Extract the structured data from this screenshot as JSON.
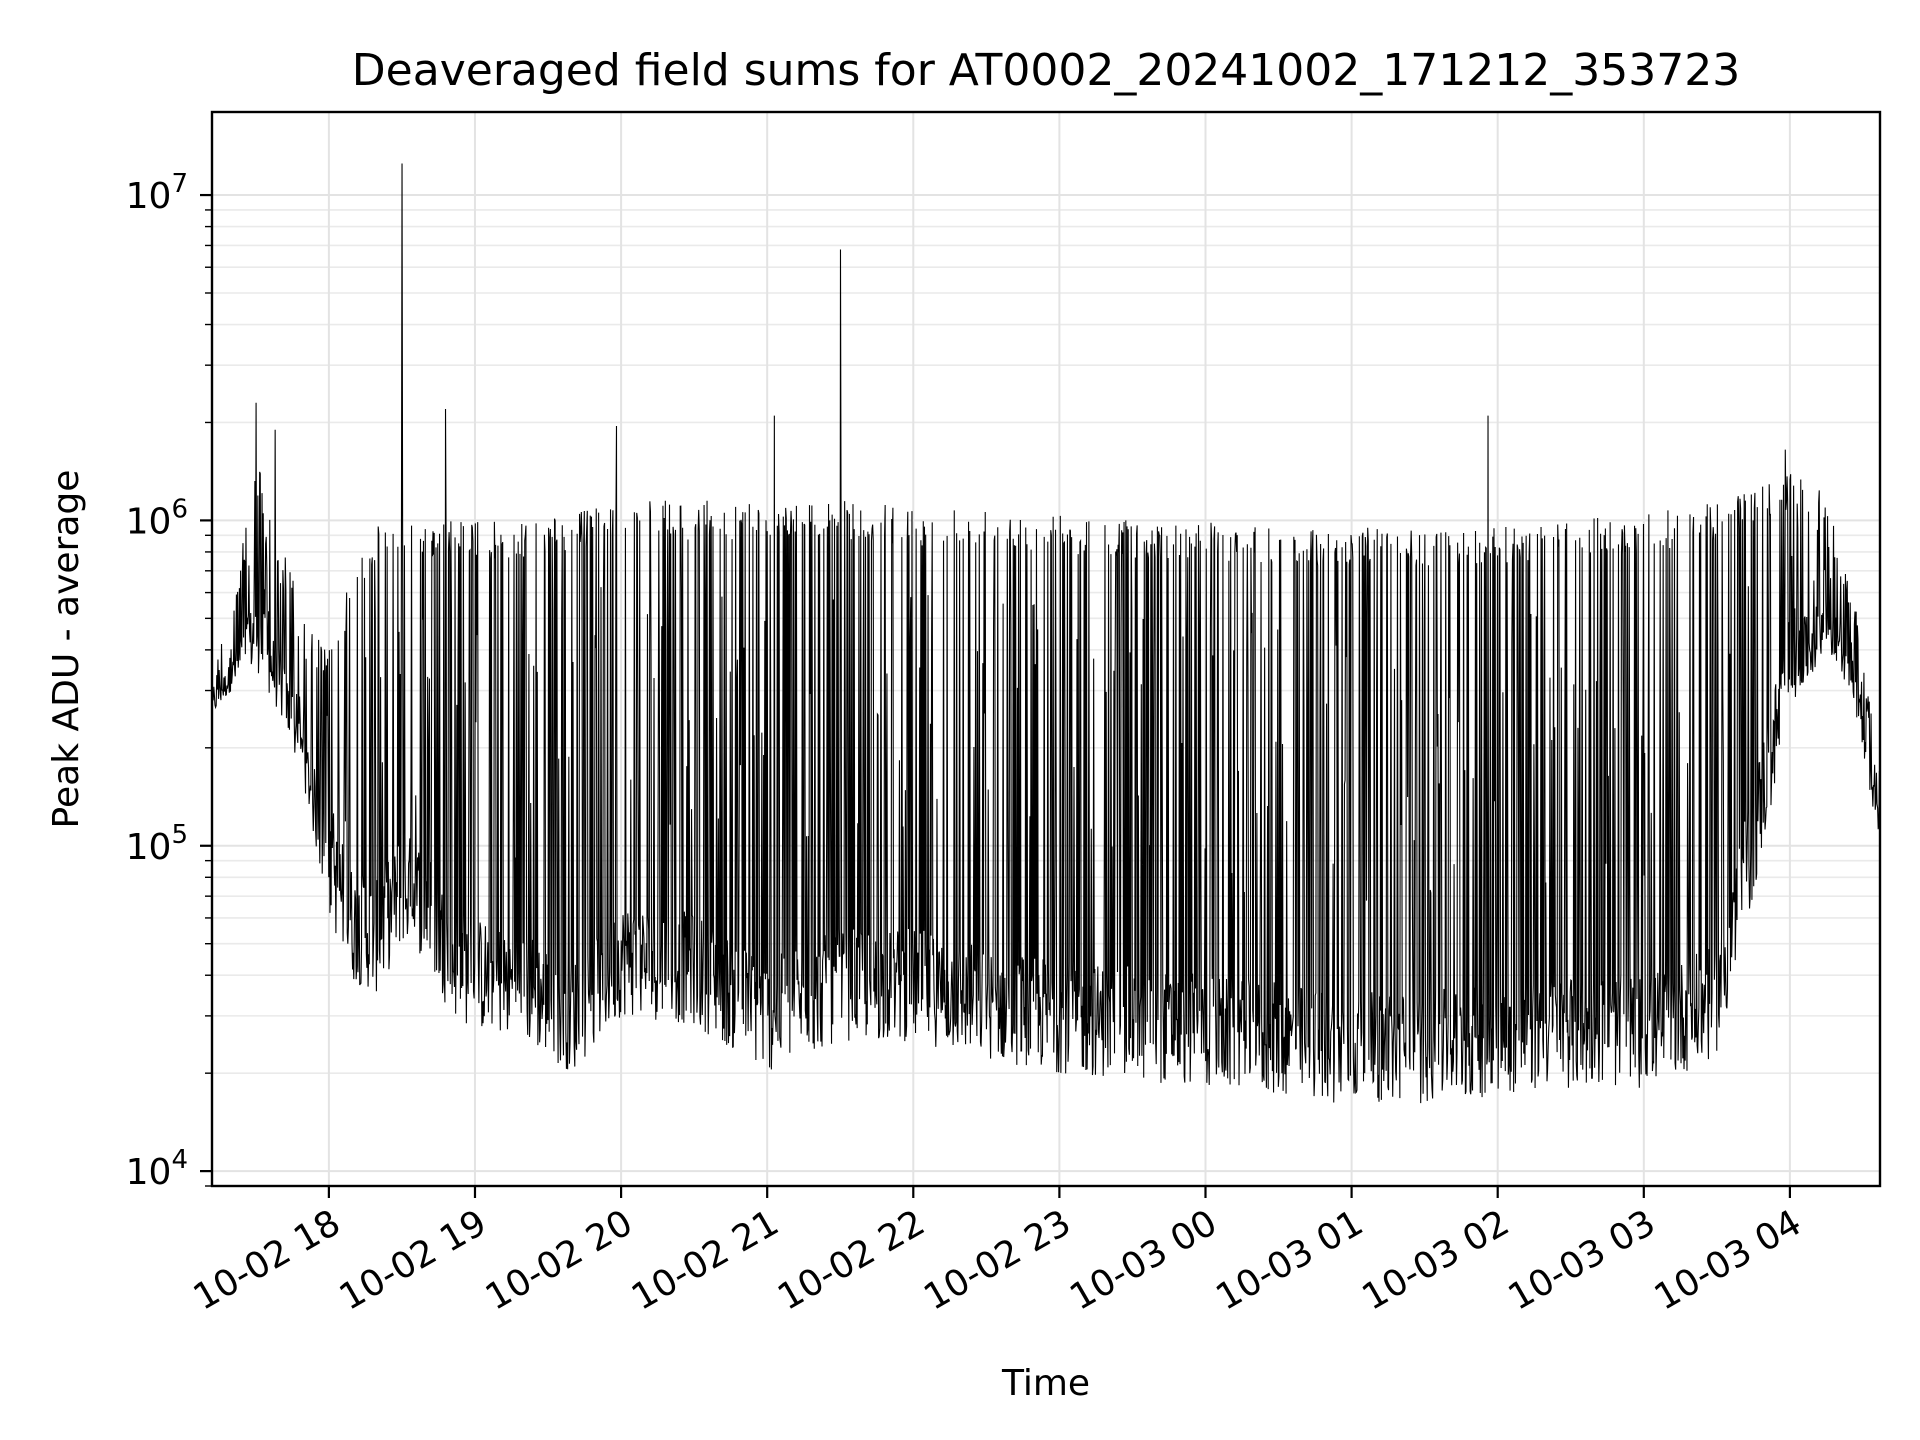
{
  "chart_data": {
    "type": "line",
    "title": "Deaveraged field sums for AT0002_20241002_171212_353723",
    "xlabel": "Time",
    "ylabel": "Peak ADU - average",
    "yscale": "log",
    "ylim": [
      9000,
      18000000
    ],
    "xlim": [
      "2024-10-02 17:12",
      "2024-10-03 04:37"
    ],
    "grid": true,
    "x_ticks": [
      {
        "t": "2024-10-02 18:00",
        "label": "10-02 18"
      },
      {
        "t": "2024-10-02 19:00",
        "label": "10-02 19"
      },
      {
        "t": "2024-10-02 20:00",
        "label": "10-02 20"
      },
      {
        "t": "2024-10-02 21:00",
        "label": "10-02 21"
      },
      {
        "t": "2024-10-02 22:00",
        "label": "10-02 22"
      },
      {
        "t": "2024-10-02 23:00",
        "label": "10-02 23"
      },
      {
        "t": "2024-10-03 00:00",
        "label": "10-03 00"
      },
      {
        "t": "2024-10-03 01:00",
        "label": "10-03 01"
      },
      {
        "t": "2024-10-03 02:00",
        "label": "10-03 02"
      },
      {
        "t": "2024-10-03 03:00",
        "label": "10-03 03"
      },
      {
        "t": "2024-10-03 04:00",
        "label": "10-03 04"
      }
    ],
    "y_ticks": [
      {
        "value": 10000,
        "base": "10",
        "exp": "4"
      },
      {
        "value": 100000,
        "base": "10",
        "exp": "5"
      },
      {
        "value": 1000000,
        "base": "10",
        "exp": "6"
      },
      {
        "value": 10000000,
        "base": "10",
        "exp": "7"
      }
    ],
    "series": [
      {
        "color": "#000000",
        "envelope": [
          {
            "t": "2024-10-02 17:12",
            "low": 250000,
            "high": 380000
          },
          {
            "t": "2024-10-02 17:20",
            "low": 300000,
            "high": 550000
          },
          {
            "t": "2024-10-02 17:30",
            "low": 350000,
            "high": 1600000
          },
          {
            "t": "2024-10-02 17:40",
            "low": 250000,
            "high": 900000
          },
          {
            "t": "2024-10-02 17:50",
            "low": 150000,
            "high": 500000
          },
          {
            "t": "2024-10-02 18:00",
            "low": 60000,
            "high": 400000
          },
          {
            "t": "2024-10-02 18:10",
            "low": 38000,
            "high": 700000
          },
          {
            "t": "2024-10-02 18:20",
            "low": 35000,
            "high": 1000000
          },
          {
            "t": "2024-10-02 18:30",
            "low": 50000,
            "high": 1000000
          },
          {
            "t": "2024-10-02 18:40",
            "low": 45000,
            "high": 1000000
          },
          {
            "t": "2024-10-02 18:50",
            "low": 30000,
            "high": 1000000
          },
          {
            "t": "2024-10-02 19:00",
            "low": 27000,
            "high": 1000000
          },
          {
            "t": "2024-10-02 19:20",
            "low": 25000,
            "high": 1000000
          },
          {
            "t": "2024-10-02 19:40",
            "low": 20000,
            "high": 1050000
          },
          {
            "t": "2024-10-02 20:00",
            "low": 30000,
            "high": 1150000
          },
          {
            "t": "2024-10-02 20:30",
            "low": 28000,
            "high": 1150000
          },
          {
            "t": "2024-10-02 21:00",
            "low": 20000,
            "high": 1150000
          },
          {
            "t": "2024-10-02 21:30",
            "low": 25000,
            "high": 1150000
          },
          {
            "t": "2024-10-02 22:00",
            "low": 25000,
            "high": 1100000
          },
          {
            "t": "2024-10-02 22:30",
            "low": 22000,
            "high": 1100000
          },
          {
            "t": "2024-10-02 23:00",
            "low": 20000,
            "high": 1050000
          },
          {
            "t": "2024-10-02 23:30",
            "low": 19000,
            "high": 1000000
          },
          {
            "t": "2024-10-03 00:00",
            "low": 18000,
            "high": 1000000
          },
          {
            "t": "2024-10-03 00:30",
            "low": 17000,
            "high": 950000
          },
          {
            "t": "2024-10-03 01:00",
            "low": 16000,
            "high": 950000
          },
          {
            "t": "2024-10-03 01:30",
            "low": 16000,
            "high": 950000
          },
          {
            "t": "2024-10-03 02:00",
            "low": 17000,
            "high": 950000
          },
          {
            "t": "2024-10-03 02:30",
            "low": 18000,
            "high": 1000000
          },
          {
            "t": "2024-10-03 03:00",
            "low": 18000,
            "high": 1050000
          },
          {
            "t": "2024-10-03 03:30",
            "low": 22000,
            "high": 1150000
          },
          {
            "t": "2024-10-03 03:45",
            "low": 70000,
            "high": 1300000
          },
          {
            "t": "2024-10-03 04:00",
            "low": 250000,
            "high": 1400000
          },
          {
            "t": "2024-10-03 04:15",
            "low": 400000,
            "high": 1200000
          },
          {
            "t": "2024-10-03 04:25",
            "low": 300000,
            "high": 700000
          },
          {
            "t": "2024-10-03 04:37",
            "low": 100000,
            "high": 170000
          }
        ],
        "spikes": [
          {
            "t": "2024-10-02 17:30",
            "value": 2300000
          },
          {
            "t": "2024-10-02 17:38",
            "value": 1900000
          },
          {
            "t": "2024-10-02 18:30",
            "value": 12500000
          },
          {
            "t": "2024-10-02 18:48",
            "value": 2200000
          },
          {
            "t": "2024-10-02 19:58",
            "value": 1950000
          },
          {
            "t": "2024-10-02 21:03",
            "value": 2100000
          },
          {
            "t": "2024-10-02 21:30",
            "value": 6800000
          },
          {
            "t": "2024-10-03 01:56",
            "value": 2100000
          },
          {
            "t": "2024-10-03 03:58",
            "value": 1650000
          }
        ]
      }
    ]
  }
}
